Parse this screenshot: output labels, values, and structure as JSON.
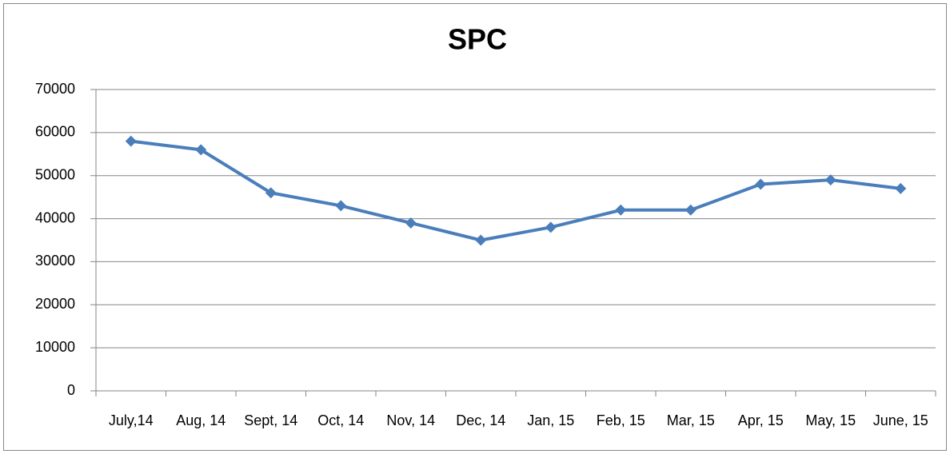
{
  "chart_data": {
    "type": "line",
    "title": "SPC",
    "categories": [
      "July,14",
      "Aug, 14",
      "Sept, 14",
      "Oct, 14",
      "Nov, 14",
      "Dec, 14",
      "Jan, 15",
      "Feb, 15",
      "Mar, 15",
      "Apr, 15",
      "May, 15",
      "June, 15"
    ],
    "values": [
      58000,
      56000,
      46000,
      43000,
      39000,
      35000,
      38000,
      42000,
      42000,
      48000,
      49000,
      47000
    ],
    "color": "#4a7ebb",
    "ylim": [
      0,
      70000
    ],
    "yticks": [
      0,
      10000,
      20000,
      30000,
      40000,
      50000,
      60000,
      70000
    ],
    "grid": true
  }
}
